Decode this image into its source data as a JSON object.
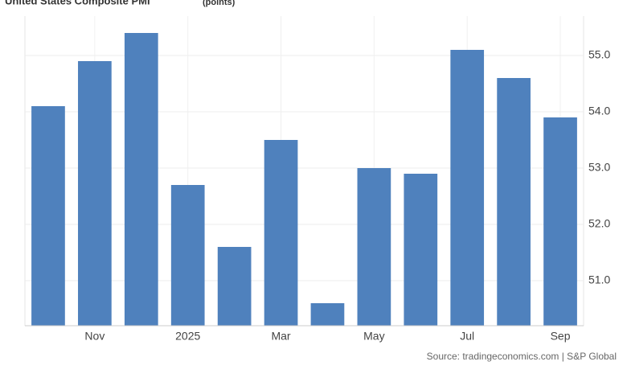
{
  "chart_data": {
    "type": "bar",
    "title": "United States Composite PMI",
    "unit": "(points)",
    "categories": [
      null,
      "Nov",
      null,
      "2025",
      null,
      "Mar",
      null,
      "May",
      null,
      "Jul",
      null,
      "Sep"
    ],
    "values": [
      54.1,
      54.9,
      55.4,
      52.7,
      51.6,
      53.5,
      50.6,
      53.0,
      52.9,
      55.1,
      54.6,
      53.9
    ],
    "color": "#4f81bd",
    "ylim": [
      50.2,
      55.7
    ],
    "yticks": [
      {
        "value": 51,
        "label": "51.0"
      },
      {
        "value": 52,
        "label": "52.0"
      },
      {
        "value": 53,
        "label": "53.0"
      },
      {
        "value": 54,
        "label": "54.0"
      },
      {
        "value": 55,
        "label": "55.0"
      }
    ],
    "grid": true,
    "source": "Source: tradingeconomics.com | S&P Global"
  }
}
